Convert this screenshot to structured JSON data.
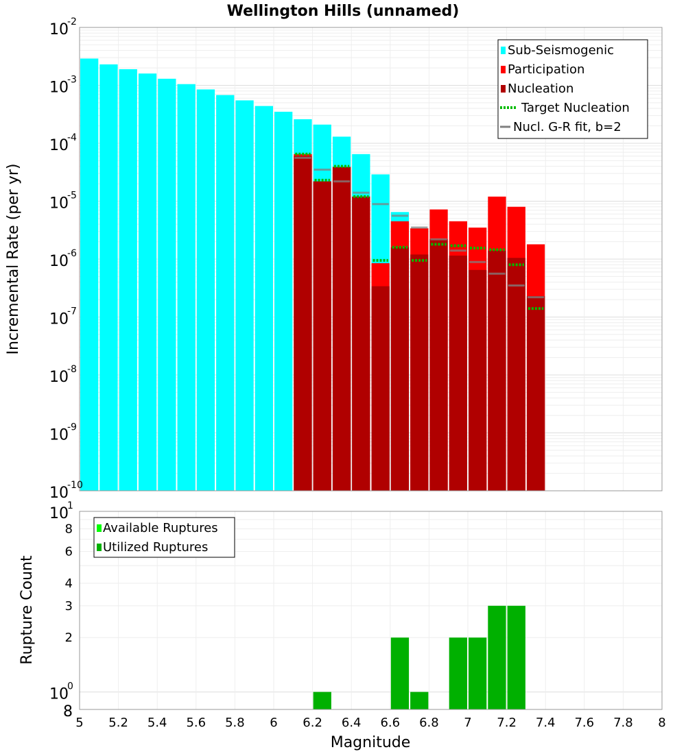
{
  "colors": {
    "sub_seismogenic": "#00ffff",
    "participation": "#ff0000",
    "nucleation": "#b00000",
    "target_nucleation": "#00bb00",
    "gr_fit": "#808080",
    "available": "#00ff00",
    "utilized": "#00b000"
  },
  "chart_data": [
    {
      "type": "bar",
      "title": "Wellington Hills (unnamed)",
      "xlabel": "",
      "ylabel": "Incremental Rate (per yr)",
      "yscale": "log",
      "xlim": [
        5,
        8
      ],
      "ylim": [
        1e-10,
        0.01
      ],
      "ytick_exponents": [
        "-10",
        "-9",
        "-8",
        "-7",
        "-6",
        "-5",
        "-4",
        "-3",
        "-2"
      ],
      "legend_position": "top-right",
      "legend": [
        {
          "label": "Sub-Seismogenic",
          "kind": "bar",
          "color": "#00ffff"
        },
        {
          "label": "Participation",
          "kind": "bar",
          "color": "#ff0000"
        },
        {
          "label": "Nucleation",
          "kind": "bar",
          "color": "#b00000"
        },
        {
          "label": "Target Nucleation",
          "kind": "dotted",
          "color": "#00bb00"
        },
        {
          "label": "Nucl. G-R fit, b=2",
          "kind": "line",
          "color": "#808080"
        }
      ],
      "series": [
        {
          "name": "Sub-Seismogenic",
          "x": [
            5.05,
            5.15,
            5.25,
            5.35,
            5.45,
            5.55,
            5.65,
            5.75,
            5.85,
            5.95,
            6.05,
            6.15,
            6.25,
            6.35,
            6.45,
            6.55,
            6.65
          ],
          "values": [
            0.0029,
            0.0023,
            0.0019,
            0.0016,
            0.0013,
            0.00105,
            0.00085,
            0.00068,
            0.00055,
            0.00044,
            0.00035,
            0.00026,
            0.00021,
            0.00013,
            6.5e-05,
            2.9e-05,
            6.5e-06
          ]
        },
        {
          "name": "Participation",
          "x": [
            6.15,
            6.25,
            6.35,
            6.45,
            6.55,
            6.65,
            6.75,
            6.85,
            6.95,
            7.05,
            7.15,
            7.25,
            7.35
          ],
          "values": [
            6.5e-05,
            2.2e-05,
            3.9e-05,
            1.2e-05,
            8.5e-07,
            4.5e-06,
            3.4e-06,
            7.2e-06,
            4.5e-06,
            3.5e-06,
            1.2e-05,
            8e-06,
            1.8e-06
          ]
        },
        {
          "name": "Nucleation",
          "x": [
            6.15,
            6.25,
            6.35,
            6.45,
            6.55,
            6.65,
            6.75,
            6.85,
            6.95,
            7.05,
            7.15,
            7.25,
            7.35
          ],
          "values": [
            6e-05,
            2.2e-05,
            3.9e-05,
            1.2e-05,
            3.4e-07,
            1.6e-06,
            1.2e-06,
            2.2e-06,
            1.15e-06,
            6.5e-07,
            1.4e-06,
            1.05e-06,
            2.3e-07
          ]
        },
        {
          "name": "Target Nucleation",
          "x": [
            6.15,
            6.25,
            6.35,
            6.45,
            6.55,
            6.65,
            6.75,
            6.85,
            6.95,
            7.05,
            7.15,
            7.25,
            7.35
          ],
          "values": [
            6.5e-05,
            2.3e-05,
            4e-05,
            1.2e-05,
            9.5e-07,
            1.6e-06,
            9.5e-07,
            1.8e-06,
            1.7e-06,
            1.55e-06,
            1.45e-06,
            8e-07,
            1.4e-07
          ]
        },
        {
          "name": "Nucl. G-R fit, b=2",
          "x": [
            6.15,
            6.25,
            6.35,
            6.45,
            6.55,
            6.65,
            6.75,
            6.85,
            6.95,
            7.05,
            7.15,
            7.25,
            7.35
          ],
          "values": [
            5.6e-05,
            3.5e-05,
            2.2e-05,
            1.4e-05,
            8.9e-06,
            5.6e-06,
            3.5e-06,
            2.2e-06,
            1.4e-06,
            8.9e-07,
            5.6e-07,
            3.5e-07,
            2.2e-07
          ]
        }
      ]
    },
    {
      "type": "bar",
      "xlabel": "Magnitude",
      "ylabel": "Rupture Count",
      "yscale": "log",
      "xlim": [
        5,
        8
      ],
      "ylim": [
        0.8,
        10
      ],
      "xticks": [
        "5",
        "5.2",
        "5.4",
        "5.6",
        "5.8",
        "6",
        "6.2",
        "6.4",
        "6.6",
        "6.8",
        "7",
        "7.2",
        "7.4",
        "7.6",
        "7.8",
        "8"
      ],
      "yticks_minor": [
        "8",
        "6",
        "4",
        "3",
        "2"
      ],
      "ytick_bottom": "8",
      "ytick_exponents": [
        "0",
        "1"
      ],
      "legend_position": "top-left",
      "legend": [
        {
          "label": "Available Ruptures",
          "kind": "bar",
          "color": "#00ff00"
        },
        {
          "label": "Utilized Ruptures",
          "kind": "bar",
          "color": "#00b000"
        }
      ],
      "series": [
        {
          "name": "Utilized Ruptures",
          "x": [
            6.25,
            6.65,
            6.75,
            6.95,
            7.05,
            7.15,
            7.25
          ],
          "values": [
            1,
            2,
            1,
            2,
            2,
            3,
            3
          ]
        }
      ]
    }
  ]
}
